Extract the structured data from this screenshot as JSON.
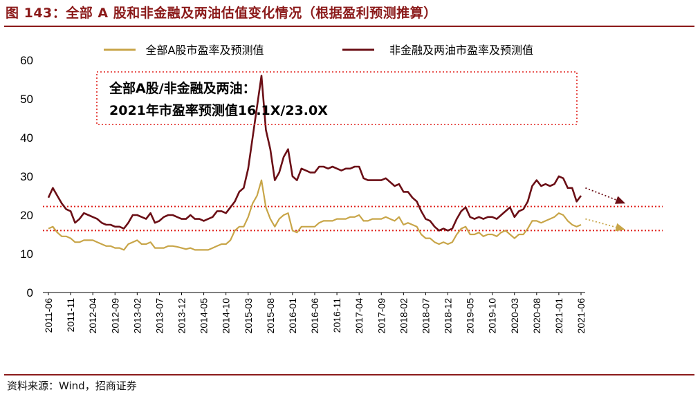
{
  "header": {
    "title": "图 143：全部 A 股和非金融及两油估值变化情况（根据盈利预测推算）"
  },
  "footer": {
    "source": "资料来源：Wind，招商证券"
  },
  "chart_data": {
    "type": "line",
    "title": "图 143：全部 A 股和非金融及两油估值变化情况（根据盈利预测推算）",
    "xlabel": "",
    "ylabel": "",
    "ylim": [
      0,
      60
    ],
    "yticks": [
      0,
      10,
      20,
      30,
      40,
      50,
      60
    ],
    "x_range": [
      "2011-06",
      "2021-06"
    ],
    "xticks": [
      "2011-06",
      "2011-11",
      "2012-04",
      "2012-09",
      "2013-02",
      "2013-07",
      "2013-12",
      "2014-05",
      "2014-10",
      "2015-03",
      "2015-08",
      "2016-01",
      "2016-06",
      "2016-11",
      "2017-04",
      "2017-09",
      "2018-02",
      "2018-07",
      "2018-12",
      "2019-05",
      "2019-10",
      "2020-03",
      "2020-08",
      "2021-01",
      "2021-06"
    ],
    "grid": false,
    "legend_position": "top",
    "series": [
      {
        "name": "全部A股市盈率及预测值",
        "color": "#c8a548",
        "points": [
          [
            "2011-06",
            16.5
          ],
          [
            "2011-07",
            17
          ],
          [
            "2011-08",
            15.5
          ],
          [
            "2011-09",
            14.5
          ],
          [
            "2011-10",
            14.5
          ],
          [
            "2011-11",
            14
          ],
          [
            "2011-12",
            13
          ],
          [
            "2012-01",
            13
          ],
          [
            "2012-02",
            13.5
          ],
          [
            "2012-03",
            13.5
          ],
          [
            "2012-04",
            13.5
          ],
          [
            "2012-05",
            13
          ],
          [
            "2012-06",
            12.5
          ],
          [
            "2012-07",
            12
          ],
          [
            "2012-08",
            12
          ],
          [
            "2012-09",
            11.5
          ],
          [
            "2012-10",
            11.5
          ],
          [
            "2012-11",
            11
          ],
          [
            "2012-12",
            12.5
          ],
          [
            "2013-01",
            13
          ],
          [
            "2013-02",
            13.5
          ],
          [
            "2013-03",
            12.5
          ],
          [
            "2013-04",
            12.5
          ],
          [
            "2013-05",
            13
          ],
          [
            "2013-06",
            11.5
          ],
          [
            "2013-07",
            11.5
          ],
          [
            "2013-08",
            11.5
          ],
          [
            "2013-09",
            12
          ],
          [
            "2013-10",
            12
          ],
          [
            "2013-11",
            11.8
          ],
          [
            "2013-12",
            11.5
          ],
          [
            "2014-01",
            11.2
          ],
          [
            "2014-02",
            11.5
          ],
          [
            "2014-03",
            11
          ],
          [
            "2014-04",
            11
          ],
          [
            "2014-05",
            11
          ],
          [
            "2014-06",
            11
          ],
          [
            "2014-07",
            11.5
          ],
          [
            "2014-08",
            12
          ],
          [
            "2014-09",
            12.5
          ],
          [
            "2014-10",
            12.5
          ],
          [
            "2014-11",
            13.5
          ],
          [
            "2014-12",
            16
          ],
          [
            "2015-01",
            17
          ],
          [
            "2015-02",
            17
          ],
          [
            "2015-03",
            19.5
          ],
          [
            "2015-04",
            23
          ],
          [
            "2015-05",
            25
          ],
          [
            "2015-06",
            29
          ],
          [
            "2015-07",
            22
          ],
          [
            "2015-08",
            19
          ],
          [
            "2015-09",
            17
          ],
          [
            "2015-10",
            19
          ],
          [
            "2015-11",
            20
          ],
          [
            "2015-12",
            20.5
          ],
          [
            "2016-01",
            16
          ],
          [
            "2016-02",
            15.5
          ],
          [
            "2016-03",
            17
          ],
          [
            "2016-04",
            17
          ],
          [
            "2016-05",
            17
          ],
          [
            "2016-06",
            17
          ],
          [
            "2016-07",
            18
          ],
          [
            "2016-08",
            18.5
          ],
          [
            "2016-09",
            18.5
          ],
          [
            "2016-10",
            18.5
          ],
          [
            "2016-11",
            19
          ],
          [
            "2016-12",
            19
          ],
          [
            "2017-01",
            19
          ],
          [
            "2017-02",
            19.5
          ],
          [
            "2017-03",
            19.5
          ],
          [
            "2017-04",
            20
          ],
          [
            "2017-05",
            18.5
          ],
          [
            "2017-06",
            18.5
          ],
          [
            "2017-07",
            19
          ],
          [
            "2017-08",
            19
          ],
          [
            "2017-09",
            19
          ],
          [
            "2017-10",
            19.5
          ],
          [
            "2017-11",
            19
          ],
          [
            "2017-12",
            18.5
          ],
          [
            "2018-01",
            19.5
          ],
          [
            "2018-02",
            17.5
          ],
          [
            "2018-03",
            18
          ],
          [
            "2018-04",
            17.5
          ],
          [
            "2018-05",
            17
          ],
          [
            "2018-06",
            15
          ],
          [
            "2018-07",
            14
          ],
          [
            "2018-08",
            14
          ],
          [
            "2018-09",
            13
          ],
          [
            "2018-10",
            12.5
          ],
          [
            "2018-11",
            13
          ],
          [
            "2018-12",
            12.5
          ],
          [
            "2019-01",
            13
          ],
          [
            "2019-02",
            15
          ],
          [
            "2019-03",
            16.5
          ],
          [
            "2019-04",
            17
          ],
          [
            "2019-05",
            15
          ],
          [
            "2019-06",
            15
          ],
          [
            "2019-07",
            15.5
          ],
          [
            "2019-08",
            14.5
          ],
          [
            "2019-09",
            15
          ],
          [
            "2019-10",
            15
          ],
          [
            "2019-11",
            14.5
          ],
          [
            "2019-12",
            15.5
          ],
          [
            "2020-01",
            16
          ],
          [
            "2020-02",
            15
          ],
          [
            "2020-03",
            14
          ],
          [
            "2020-04",
            15
          ],
          [
            "2020-05",
            15
          ],
          [
            "2020-06",
            16.5
          ],
          [
            "2020-07",
            18.5
          ],
          [
            "2020-08",
            18.5
          ],
          [
            "2020-09",
            18
          ],
          [
            "2020-10",
            18.5
          ],
          [
            "2020-11",
            19
          ],
          [
            "2020-12",
            19.5
          ],
          [
            "2021-01",
            20.5
          ],
          [
            "2021-02",
            20
          ],
          [
            "2021-03",
            18.5
          ],
          [
            "2021-04",
            17.5
          ],
          [
            "2021-05",
            17
          ],
          [
            "2021-06",
            17.5
          ]
        ]
      },
      {
        "name": "非金融及两油市盈率及预测值",
        "color": "#6b0f16",
        "points": [
          [
            "2011-06",
            24.5
          ],
          [
            "2011-07",
            27
          ],
          [
            "2011-08",
            25
          ],
          [
            "2011-09",
            23
          ],
          [
            "2011-10",
            21.5
          ],
          [
            "2011-11",
            21
          ],
          [
            "2011-12",
            18
          ],
          [
            "2012-01",
            19
          ],
          [
            "2012-02",
            20.5
          ],
          [
            "2012-03",
            20
          ],
          [
            "2012-04",
            19.5
          ],
          [
            "2012-05",
            19
          ],
          [
            "2012-06",
            18
          ],
          [
            "2012-07",
            17.5
          ],
          [
            "2012-08",
            17.5
          ],
          [
            "2012-09",
            17
          ],
          [
            "2012-10",
            17
          ],
          [
            "2012-11",
            16.5
          ],
          [
            "2012-12",
            18
          ],
          [
            "2013-01",
            20
          ],
          [
            "2013-02",
            20
          ],
          [
            "2013-03",
            19.5
          ],
          [
            "2013-04",
            19
          ],
          [
            "2013-05",
            20.5
          ],
          [
            "2013-06",
            18
          ],
          [
            "2013-07",
            18.5
          ],
          [
            "2013-08",
            19.5
          ],
          [
            "2013-09",
            20
          ],
          [
            "2013-10",
            20
          ],
          [
            "2013-11",
            19.5
          ],
          [
            "2013-12",
            19
          ],
          [
            "2014-01",
            19
          ],
          [
            "2014-02",
            20
          ],
          [
            "2014-03",
            19
          ],
          [
            "2014-04",
            19
          ],
          [
            "2014-05",
            18.5
          ],
          [
            "2014-06",
            19
          ],
          [
            "2014-07",
            19.5
          ],
          [
            "2014-08",
            21
          ],
          [
            "2014-09",
            21
          ],
          [
            "2014-10",
            20.5
          ],
          [
            "2014-11",
            22
          ],
          [
            "2014-12",
            23.5
          ],
          [
            "2015-01",
            26
          ],
          [
            "2015-02",
            27
          ],
          [
            "2015-03",
            32
          ],
          [
            "2015-04",
            40
          ],
          [
            "2015-05",
            48
          ],
          [
            "2015-06",
            56
          ],
          [
            "2015-07",
            42
          ],
          [
            "2015-08",
            37
          ],
          [
            "2015-09",
            29
          ],
          [
            "2015-10",
            31
          ],
          [
            "2015-11",
            35
          ],
          [
            "2015-12",
            37
          ],
          [
            "2016-01",
            30
          ],
          [
            "2016-02",
            29
          ],
          [
            "2016-03",
            32
          ],
          [
            "2016-04",
            31.5
          ],
          [
            "2016-05",
            31
          ],
          [
            "2016-06",
            31
          ],
          [
            "2016-07",
            32.5
          ],
          [
            "2016-08",
            32.5
          ],
          [
            "2016-09",
            32
          ],
          [
            "2016-10",
            32.5
          ],
          [
            "2016-11",
            32
          ],
          [
            "2016-12",
            31.5
          ],
          [
            "2017-01",
            32
          ],
          [
            "2017-02",
            32
          ],
          [
            "2017-03",
            32.5
          ],
          [
            "2017-04",
            32.5
          ],
          [
            "2017-05",
            29.5
          ],
          [
            "2017-06",
            29
          ],
          [
            "2017-07",
            29
          ],
          [
            "2017-08",
            29
          ],
          [
            "2017-09",
            29
          ],
          [
            "2017-10",
            29.5
          ],
          [
            "2017-11",
            28.5
          ],
          [
            "2017-12",
            27.5
          ],
          [
            "2018-01",
            28
          ],
          [
            "2018-02",
            26
          ],
          [
            "2018-03",
            26
          ],
          [
            "2018-04",
            24.5
          ],
          [
            "2018-05",
            23.5
          ],
          [
            "2018-06",
            21
          ],
          [
            "2018-07",
            19
          ],
          [
            "2018-08",
            18.5
          ],
          [
            "2018-09",
            17
          ],
          [
            "2018-10",
            16
          ],
          [
            "2018-11",
            16.5
          ],
          [
            "2018-12",
            16
          ],
          [
            "2019-01",
            16.5
          ],
          [
            "2019-02",
            19
          ],
          [
            "2019-03",
            21
          ],
          [
            "2019-04",
            22
          ],
          [
            "2019-05",
            19.5
          ],
          [
            "2019-06",
            19
          ],
          [
            "2019-07",
            19.5
          ],
          [
            "2019-08",
            19
          ],
          [
            "2019-09",
            19.5
          ],
          [
            "2019-10",
            19.5
          ],
          [
            "2019-11",
            19
          ],
          [
            "2019-12",
            20
          ],
          [
            "2020-01",
            21
          ],
          [
            "2020-02",
            22
          ],
          [
            "2020-03",
            19.5
          ],
          [
            "2020-04",
            21
          ],
          [
            "2020-05",
            21.5
          ],
          [
            "2020-06",
            23.5
          ],
          [
            "2020-07",
            27.5
          ],
          [
            "2020-08",
            29
          ],
          [
            "2020-09",
            27.5
          ],
          [
            "2020-10",
            28
          ],
          [
            "2020-11",
            27.5
          ],
          [
            "2020-12",
            28
          ],
          [
            "2021-01",
            30
          ],
          [
            "2021-02",
            29.5
          ],
          [
            "2021-03",
            27
          ],
          [
            "2021-04",
            27
          ],
          [
            "2021-05",
            23.5
          ],
          [
            "2021-06",
            25
          ]
        ]
      }
    ],
    "reference_lines": [
      {
        "y": 22.2,
        "color": "#e0201b",
        "style": "dotted"
      },
      {
        "y": 16.0,
        "color": "#e0201b",
        "style": "dotted"
      }
    ],
    "trend_arrows": [
      {
        "series": "非金融及两油市盈率及预测值",
        "from": [
          "2021-07",
          27
        ],
        "to": [
          "2022-04",
          23
        ],
        "color": "#6b0f16"
      },
      {
        "series": "全部A股市盈率及预测值",
        "from": [
          "2021-07",
          19
        ],
        "to": [
          "2022-04",
          16.2
        ],
        "color": "#c8a548"
      }
    ],
    "annotation": {
      "lines": [
        "全部A股/非金融及两油：",
        "2021年市盈率预测值16.1X/23.0X"
      ]
    }
  }
}
